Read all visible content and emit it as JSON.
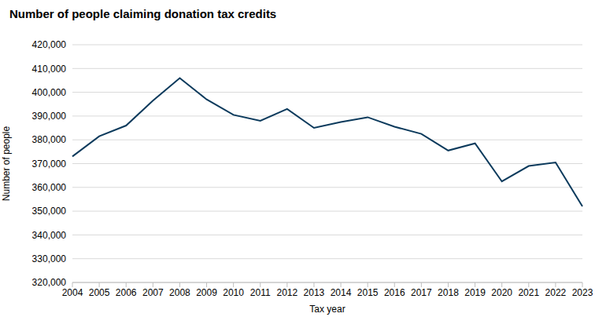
{
  "chart_data": {
    "type": "line",
    "title": "Number of people claiming donation tax credits",
    "x_label": "Tax year",
    "y_label": "Number of people",
    "categories": [
      "2004",
      "2005",
      "2006",
      "2007",
      "2008",
      "2009",
      "2010",
      "2011",
      "2012",
      "2013",
      "2014",
      "2015",
      "2016",
      "2017",
      "2018",
      "2019",
      "2020",
      "2021",
      "2022",
      "2023"
    ],
    "values": [
      373000,
      381500,
      386000,
      396500,
      406000,
      397000,
      390500,
      388000,
      393000,
      385000,
      387500,
      389500,
      385500,
      382500,
      375500,
      378500,
      362500,
      369000,
      370500,
      352000
    ],
    "color": "#0b3a5c",
    "ylim": [
      320000,
      420000
    ],
    "yticks": [
      {
        "value": 320000,
        "label": "320,000"
      },
      {
        "value": 330000,
        "label": "330,000"
      },
      {
        "value": 340000,
        "label": "340,000"
      },
      {
        "value": 350000,
        "label": "350,000"
      },
      {
        "value": 360000,
        "label": "360,000"
      },
      {
        "value": 370000,
        "label": "370,000"
      },
      {
        "value": 380000,
        "label": "380,000"
      },
      {
        "value": 390000,
        "label": "390,000"
      },
      {
        "value": 400000,
        "label": "400,000"
      },
      {
        "value": 410000,
        "label": "410,000"
      },
      {
        "value": 420000,
        "label": "420,000"
      }
    ],
    "grid": true
  }
}
